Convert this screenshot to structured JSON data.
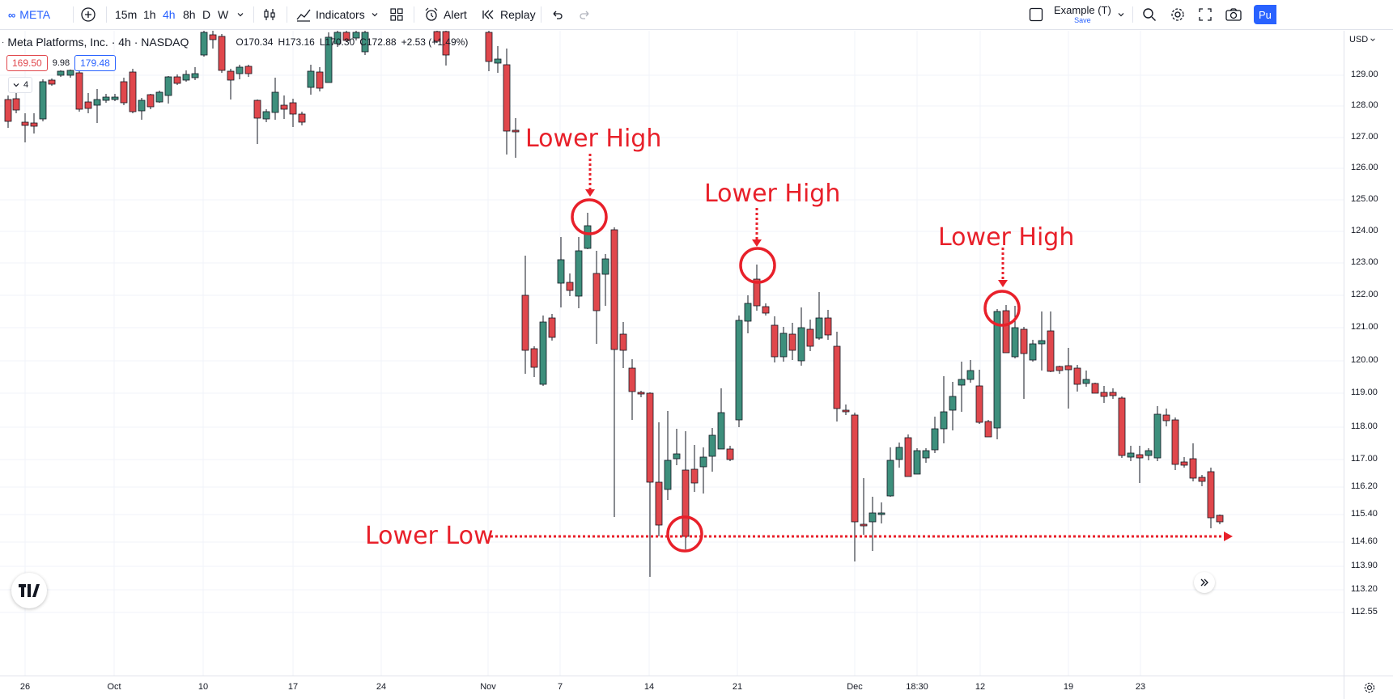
{
  "toolbar": {
    "symbol": "META",
    "intervals": [
      "15m",
      "1h",
      "4h",
      "8h",
      "D",
      "W"
    ],
    "active_interval": "4h",
    "indicators_label": "Indicators",
    "alert_label": "Alert",
    "replay_label": "Replay",
    "layout_name": "Example (T)",
    "layout_save": "Save",
    "publish_label": "Pu",
    "accent_color": "#2962ff"
  },
  "legend": {
    "title": "Meta Platforms, Inc. · 4h · NASDAQ",
    "open": "O170.34",
    "high": "H173.16",
    "low": "L170.30",
    "close": "C172.88",
    "change": "+2.53 (+1.49%)",
    "sell_price": "169.50",
    "spread": "9.98",
    "buy_price": "179.48",
    "indicator_count": "4"
  },
  "price_scale": {
    "currency": "USD",
    "labels": [
      "129.00",
      "128.00",
      "127.00",
      "126.00",
      "125.00",
      "124.00",
      "123.00",
      "122.00",
      "121.00",
      "120.00",
      "119.00",
      "118.00",
      "117.00",
      "116.20",
      "115.40",
      "114.60",
      "113.90",
      "113.20",
      "112.55"
    ]
  },
  "time_scale": {
    "labels": [
      "26",
      "Oct",
      "10",
      "17",
      "24",
      "Nov",
      "7",
      "14",
      "21",
      "Dec",
      "18:30",
      "12",
      "19",
      "23"
    ]
  },
  "annotations": {
    "lower_high_1": "Lower High",
    "lower_high_2": "Lower High",
    "lower_high_3": "Lower High",
    "lower_low": "Lower Low",
    "color": "#e8202a"
  },
  "chart_data": {
    "type": "candlestick",
    "symbol": "META",
    "timeframe": "4h",
    "up_color": "#3d8f7c",
    "down_color": "#e0474c",
    "ylim": [
      112.55,
      129.0
    ],
    "candles_visible_low_region": [
      {
        "o": 124.0,
        "h": 124.6,
        "l": 123.6,
        "c": 124.9
      },
      {
        "o": 122.1,
        "h": 122.9,
        "l": 121.6,
        "c": 121.9
      },
      {
        "o": 120.9,
        "h": 121.4,
        "l": 119.6,
        "c": 121.5
      },
      {
        "o": 116.5,
        "h": 117.4,
        "l": 115.0,
        "c": 115.4
      }
    ],
    "lower_high_1_price": 124.6,
    "lower_high_2_price": 122.9,
    "lower_high_3_price": 121.4,
    "lower_low_price": 114.7
  }
}
